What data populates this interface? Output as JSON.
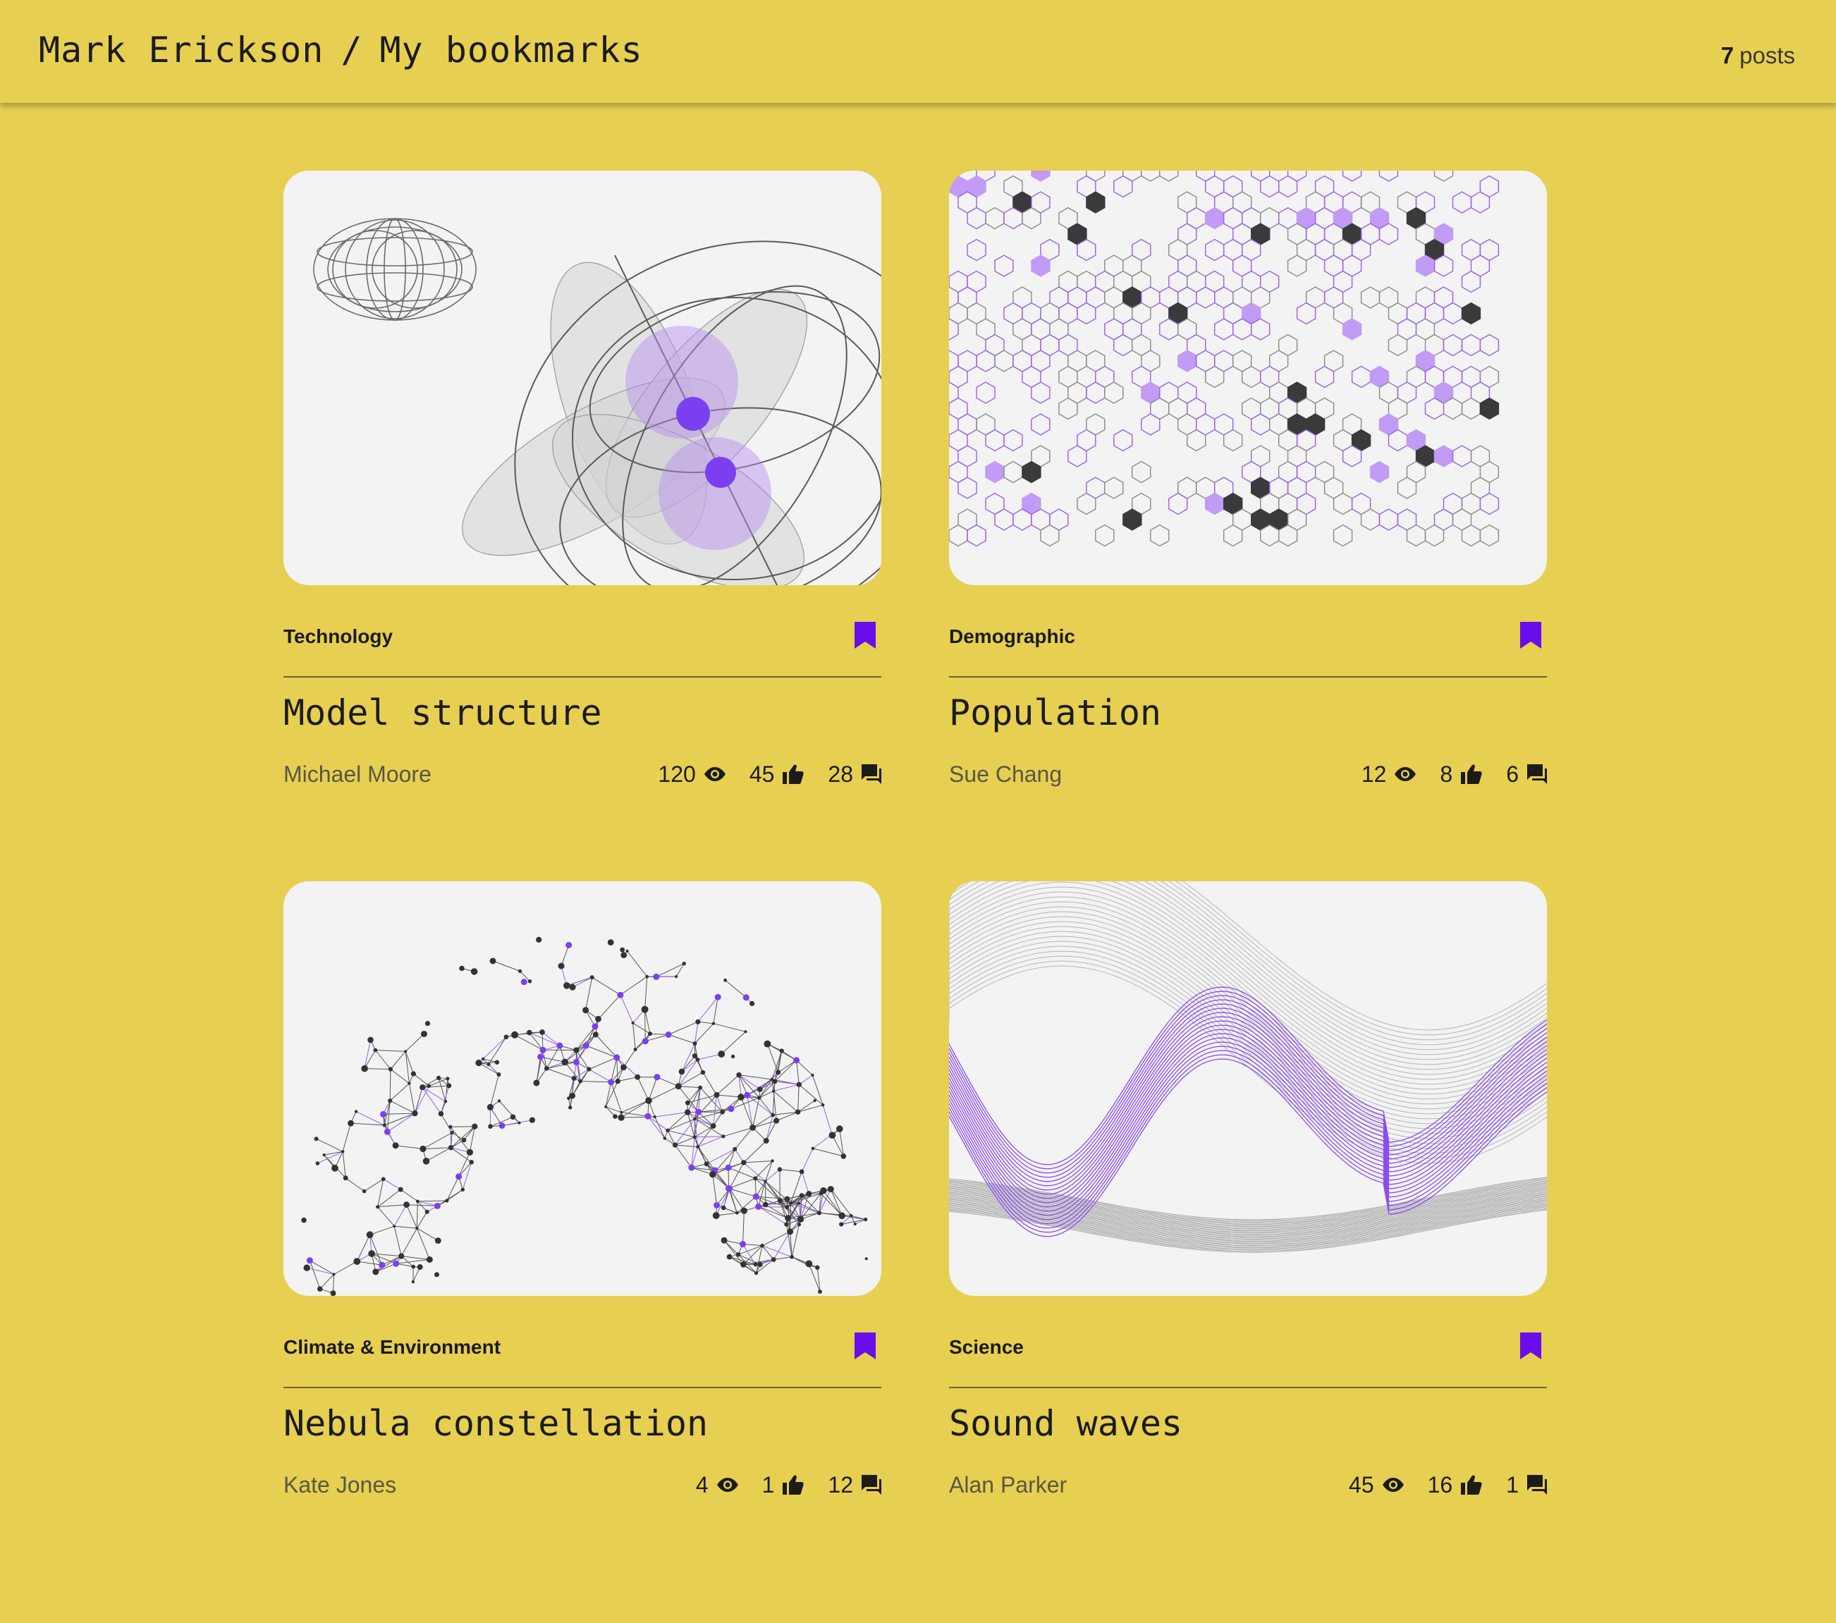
{
  "header": {
    "user": "Mark Erickson",
    "separator": "/",
    "page": "My bookmarks",
    "count": "7",
    "count_label": "posts"
  },
  "theme": {
    "background": "#E7CF51",
    "accent": "#6A0DEB",
    "card": "#F3F3F4"
  },
  "posts": [
    {
      "category": "Technology",
      "title": "Model structure",
      "author": "Michael Moore",
      "views": "120",
      "likes": "45",
      "comments": "28",
      "bookmarked": true,
      "image": "wireframe-spheres-illustration"
    },
    {
      "category": "Demographic",
      "title": "Population",
      "author": "Sue Chang",
      "views": "12",
      "likes": "8",
      "comments": "6",
      "bookmarked": true,
      "image": "hexagon-network-illustration"
    },
    {
      "category": "Climate & Environment",
      "title": "Nebula constellation",
      "author": "Kate Jones",
      "views": "4",
      "likes": "1",
      "comments": "12",
      "bookmarked": true,
      "image": "constellation-network-illustration"
    },
    {
      "category": "Science",
      "title": "Sound waves",
      "author": "Alan Parker",
      "views": "45",
      "likes": "16",
      "comments": "1",
      "bookmarked": true,
      "image": "sound-wave-lines-illustration"
    }
  ]
}
